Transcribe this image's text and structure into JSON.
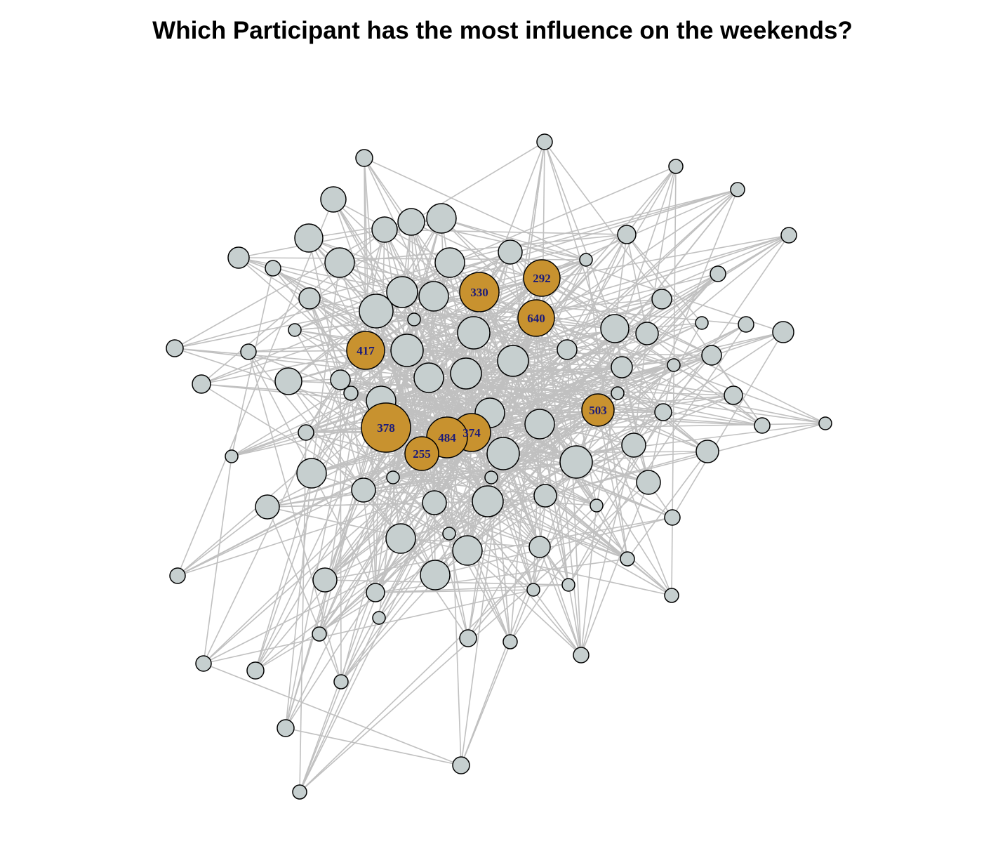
{
  "title": "Which Participant has the most influence on the weekends?",
  "colors": {
    "edge": "#c0c0c0",
    "node_fill": "#c6cfcf",
    "highlight_fill": "#c8922f",
    "node_stroke": "#000000",
    "label": "#1a1a7a"
  },
  "highlighted_nodes": [
    {
      "label": "292",
      "influence": 4
    },
    {
      "label": "330",
      "influence": 5
    },
    {
      "label": "640",
      "influence": 4
    },
    {
      "label": "417",
      "influence": 4
    },
    {
      "label": "503",
      "influence": 3
    },
    {
      "label": "378",
      "influence": 9
    },
    {
      "label": "374",
      "influence": 6
    },
    {
      "label": "484",
      "influence": 5
    },
    {
      "label": "255",
      "influence": 4
    }
  ],
  "other_node_count": 93
}
